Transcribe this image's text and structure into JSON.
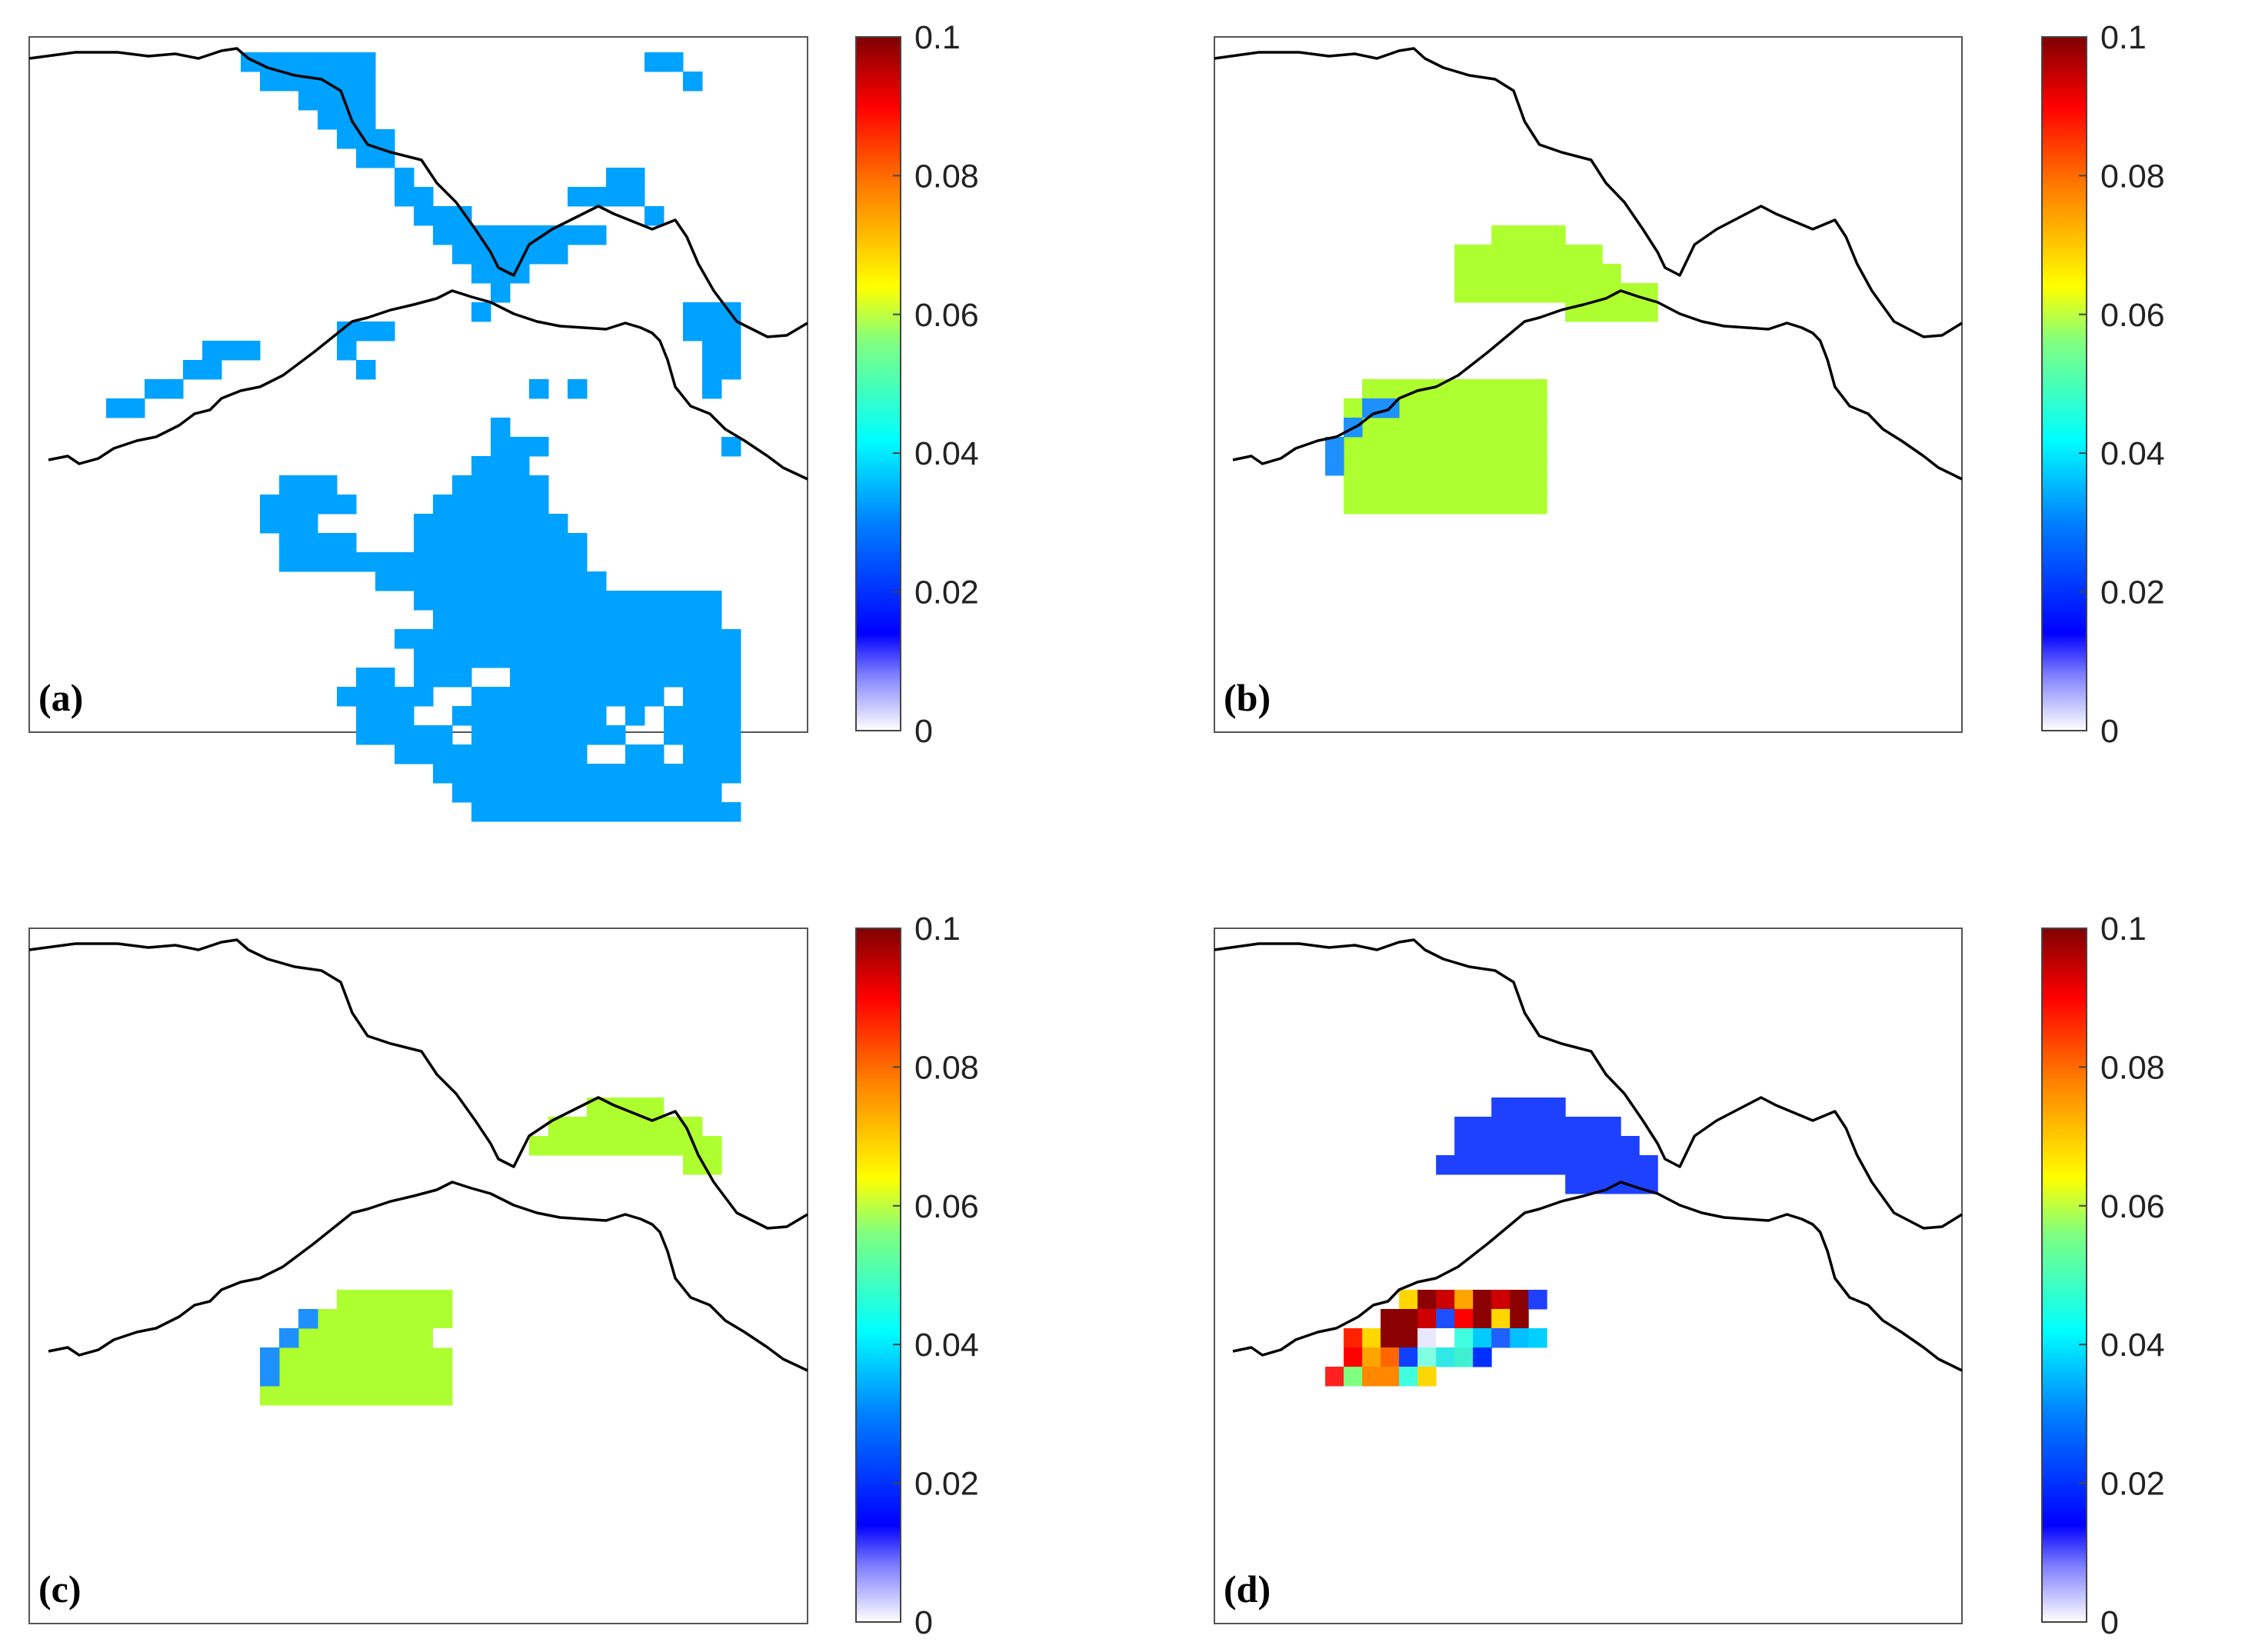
{
  "figure": {
    "panels": [
      {
        "label": "(a)",
        "colormap": "jet-like, lightened near 0"
      },
      {
        "label": "(b)",
        "colormap": "jet-like, lightened near 0"
      },
      {
        "label": "(c)",
        "colormap": "jet-like, lightened near 0"
      },
      {
        "label": "(d)",
        "colormap": "jet-like, lightened near 0"
      }
    ],
    "colorbar": {
      "min": 0,
      "max": 0.1,
      "ticks": [
        0,
        0.02,
        0.04,
        0.06,
        0.08,
        0.1
      ],
      "tick_labels": [
        "0",
        "0.02",
        "0.04",
        "0.06",
        "0.08",
        "0.1"
      ]
    },
    "layer_colors": {
      "uniform_blue": "#00a2ff",
      "uniform_green": "#adff2f",
      "edge_blue": "#1e90ff",
      "white": "#ffffff"
    },
    "boundary_color": "#000000",
    "frame_color": "#555555"
  }
}
